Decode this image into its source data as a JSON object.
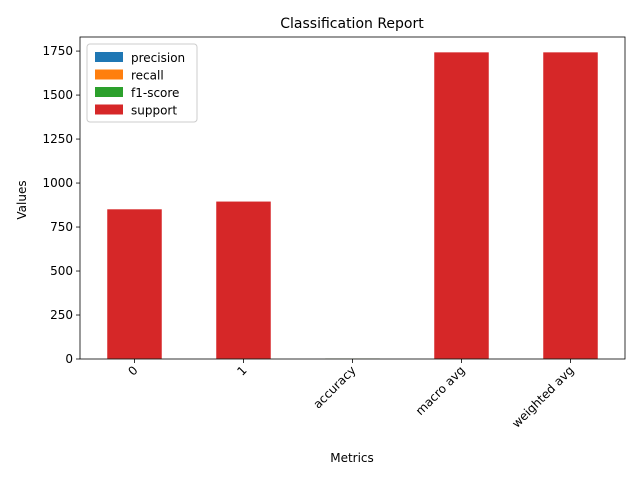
{
  "chart_data": {
    "type": "bar",
    "stacked": true,
    "title": "Classification Report",
    "xlabel": "Metrics",
    "ylabel": "Values",
    "categories": [
      "0",
      "1",
      "accuracy",
      "macro avg",
      "weighted avg"
    ],
    "series": [
      {
        "name": "precision",
        "color": "#1f77b4",
        "values": [
          0.91,
          0.93,
          0.92,
          0.92,
          0.92
        ]
      },
      {
        "name": "recall",
        "color": "#ff7f0e",
        "values": [
          0.93,
          0.91,
          0.92,
          0.92,
          0.92
        ]
      },
      {
        "name": "f1-score",
        "color": "#2ca02c",
        "values": [
          0.92,
          0.92,
          0.92,
          0.92,
          0.92
        ]
      },
      {
        "name": "support",
        "color": "#d62728",
        "values": [
          848,
          892,
          null,
          1740,
          1740
        ]
      }
    ],
    "ylim": [
      0,
      1830
    ],
    "yticks": [
      0,
      250,
      500,
      750,
      1000,
      1250,
      1500,
      1750
    ],
    "legend_position": "top-left",
    "grid": false
  }
}
